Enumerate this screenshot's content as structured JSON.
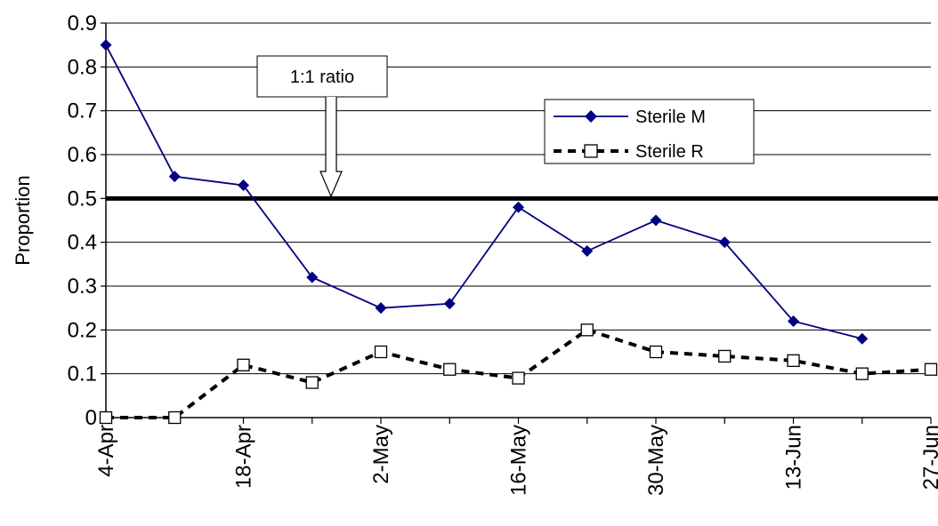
{
  "chart_data": {
    "type": "line",
    "title": "",
    "xlabel": "",
    "ylabel": "Proportion",
    "ylim": [
      0,
      0.9
    ],
    "y_ticks": [
      "0",
      "0.1",
      "0.2",
      "0.3",
      "0.4",
      "0.5",
      "0.6",
      "0.7",
      "0.8",
      "0.9"
    ],
    "x_tick_labels": [
      "4-Apr",
      "18-Apr",
      "2-May",
      "16-May",
      "30-May",
      "13-Jun",
      "27-Jun"
    ],
    "grid": true,
    "legend_position": "top-right",
    "series": [
      {
        "name": "Sterile M",
        "marker": "filled-diamond",
        "line_style": "solid",
        "color": "#000080",
        "points": [
          {
            "date": "4-Apr",
            "value": 0.85
          },
          {
            "date": "11-Apr",
            "value": 0.55
          },
          {
            "date": "18-Apr",
            "value": 0.53
          },
          {
            "date": "25-Apr",
            "value": 0.32
          },
          {
            "date": "2-May",
            "value": 0.25
          },
          {
            "date": "9-May",
            "value": 0.26
          },
          {
            "date": "16-May",
            "value": 0.48
          },
          {
            "date": "23-May",
            "value": 0.38
          },
          {
            "date": "30-May",
            "value": 0.45
          },
          {
            "date": "6-Jun",
            "value": 0.4
          },
          {
            "date": "13-Jun",
            "value": 0.22
          },
          {
            "date": "20-Jun",
            "value": 0.18
          }
        ]
      },
      {
        "name": "Sterile R",
        "marker": "open-square",
        "line_style": "dashed",
        "color": "#000000",
        "points": [
          {
            "date": "4-Apr",
            "value": 0.0
          },
          {
            "date": "11-Apr",
            "value": 0.0
          },
          {
            "date": "18-Apr",
            "value": 0.12
          },
          {
            "date": "25-Apr",
            "value": 0.08
          },
          {
            "date": "2-May",
            "value": 0.15
          },
          {
            "date": "9-May",
            "value": 0.11
          },
          {
            "date": "16-May",
            "value": 0.09
          },
          {
            "date": "23-May",
            "value": 0.2
          },
          {
            "date": "30-May",
            "value": 0.15
          },
          {
            "date": "6-Jun",
            "value": 0.14
          },
          {
            "date": "13-Jun",
            "value": 0.13
          },
          {
            "date": "20-Jun",
            "value": 0.1
          },
          {
            "date": "27-Jun",
            "value": 0.11
          }
        ]
      }
    ],
    "reference_line": {
      "value": 0.5,
      "color": "#000000"
    },
    "annotation": {
      "text": "1:1 ratio",
      "arrow_to": {
        "date": "27-Apr",
        "value": 0.5
      }
    }
  }
}
